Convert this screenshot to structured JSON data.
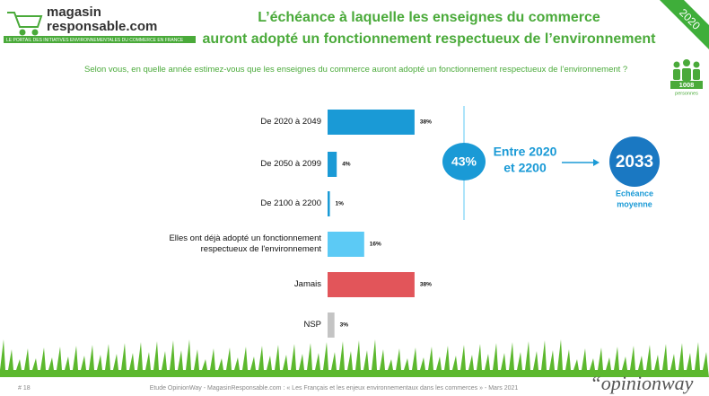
{
  "header": {
    "logo_line1": "magasin",
    "logo_line2": "responsable.com",
    "logo_tagline": "LE PORTAIL DES INITIATIVES ENVIRONNEMENTALES DU COMMERCE EN FRANCE",
    "title_line1": "L’échéance à laquelle les enseignes du commerce",
    "title_line2": "auront adopté un fonctionnement respectueux de l’environnement",
    "year_badge": "2020",
    "question": "Selon vous, en quelle année estimez-vous que les enseignes du commerce auront adopté un fonctionnement respectueux de l’environnement ?",
    "sample_size": "1008",
    "sample_label": "personnes"
  },
  "chart_data": {
    "type": "bar",
    "orientation": "horizontal",
    "categories": [
      "De 2020 à 2049",
      "De 2050 à 2099",
      "De 2100 à 2200",
      "Elles ont déjà adopté un fonctionnement respectueux de l'environnement",
      "Jamais",
      "NSP"
    ],
    "values": [
      38,
      4,
      1,
      16,
      38,
      3
    ],
    "value_labels": [
      "38%",
      "4%",
      "1%",
      "16%",
      "38%",
      "3%"
    ],
    "colors": [
      "#1a9ad6",
      "#1a9ad6",
      "#1a9ad6",
      "#5ccaf5",
      "#e2555a",
      "#c4c4c4"
    ],
    "xlim": [
      0,
      40
    ]
  },
  "callout": {
    "share": "43%",
    "range_line1": "Entre 2020",
    "range_line2": "et 2200",
    "average_year": "2033",
    "average_label_line1": "Echéance",
    "average_label_line2": "moyenne"
  },
  "footer": {
    "page": "# 18",
    "source": "Etude OpinionWay - MagasinResponsable.com : « Les Français et les enjeux environnementaux dans les commerces » - Mars 2021",
    "brand": "“opinionway"
  }
}
